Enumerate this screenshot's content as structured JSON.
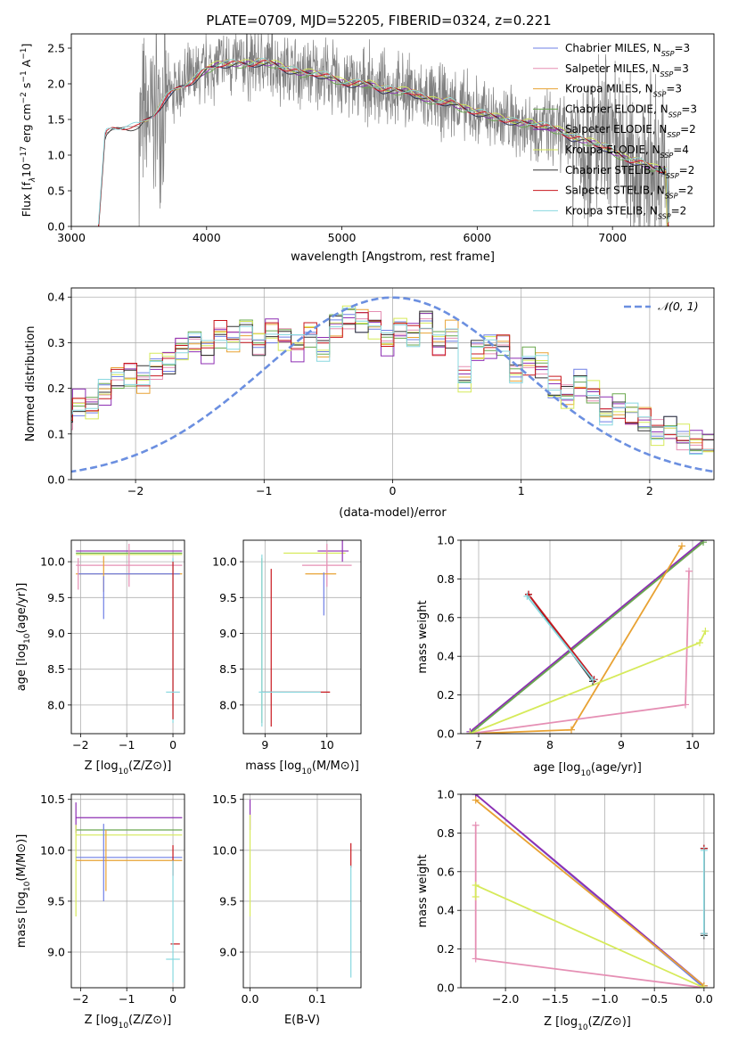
{
  "title": "PLATE=0709, MJD=52205, FIBERID=0324, z=0.221",
  "colors": {
    "Chabrier MILES": "#6f7fe6",
    "Salpeter MILES": "#e58fb4",
    "Kroupa MILES": "#e8a233",
    "Chabrier ELODIE": "#6aa84f",
    "Salpeter ELODIE": "#8e2fb3",
    "Kroupa ELODIE": "#d6ea5a",
    "Chabrier STELIB": "#333333",
    "Salpeter STELIB": "#c8171e",
    "Kroupa STELIB": "#88d8df",
    "data": "#808080",
    "gaussian": "#6b8fe0",
    "grid": "#b0b0b0"
  },
  "chart_data": [
    {
      "id": "spectrum",
      "type": "line",
      "xlabel": "wavelength [Angstrom, rest frame]",
      "ylabel_html": "Flux [f_λ 10^{-17} erg cm^{-2} s^{-1} A^{-1}]",
      "ylabel_parts": [
        "Flux [f",
        "λ",
        "10",
        "−17",
        " erg cm",
        "−2",
        " s",
        "−1",
        " A",
        "−1",
        "]"
      ],
      "xlim": [
        3000,
        7750
      ],
      "ylim": [
        0,
        2.7
      ],
      "xticks": [
        3000,
        4000,
        5000,
        6000,
        7000
      ],
      "yticks": [
        0.0,
        0.5,
        1.0,
        1.5,
        2.0,
        2.5
      ],
      "ytick_labels": [
        "0.0",
        "0.5",
        "1.0",
        "1.5",
        "2.0",
        "2.5"
      ],
      "grid": false,
      "legend_placement": "upper right",
      "legend": [
        {
          "model": "Chabrier MILES",
          "label": "Chabrier MILES, N",
          "sub": "SSP",
          "n": "=3"
        },
        {
          "model": "Salpeter MILES",
          "label": "Salpeter MILES, N",
          "sub": "SSP",
          "n": "=3"
        },
        {
          "model": "Kroupa MILES",
          "label": "Kroupa MILES, N",
          "sub": "SSP",
          "n": "=3"
        },
        {
          "model": "Chabrier ELODIE",
          "label": "Chabrier ELODIE, N",
          "sub": "SSP",
          "n": "=3"
        },
        {
          "model": "Salpeter ELODIE",
          "label": "Salpeter ELODIE, N",
          "sub": "SSP",
          "n": "=2"
        },
        {
          "model": "Kroupa ELODIE",
          "label": "Kroupa ELODIE, N",
          "sub": "SSP",
          "n": "=4"
        },
        {
          "model": "Chabrier STELIB",
          "label": "Chabrier STELIB, N",
          "sub": "SSP",
          "n": "=2"
        },
        {
          "model": "Salpeter STELIB",
          "label": "Salpeter STELIB, N",
          "sub": "SSP",
          "n": "=2"
        },
        {
          "model": "Kroupa STELIB",
          "label": "Kroupa STELIB, N",
          "sub": "SSP",
          "n": "=2"
        }
      ],
      "model_continuum": {
        "x": [
          3200,
          3250,
          3300,
          3400,
          3500,
          3600,
          3700,
          3800,
          3900,
          4000,
          4100,
          4200,
          4300,
          4400,
          4500,
          4600,
          4700,
          4800,
          4900,
          5000,
          5100,
          5200,
          5300,
          5400,
          5500,
          5600,
          5700,
          5800,
          5900,
          6000,
          6100,
          6200,
          6300,
          6400,
          6500,
          6600,
          6700,
          6800,
          6900,
          7000,
          7100,
          7200,
          7300,
          7400
        ],
        "y": [
          0.0,
          1.3,
          1.35,
          1.4,
          1.4,
          1.55,
          1.8,
          1.95,
          2.05,
          2.2,
          2.28,
          2.28,
          2.28,
          2.3,
          2.28,
          2.2,
          2.15,
          2.15,
          2.1,
          2.02,
          2.0,
          2.0,
          1.92,
          1.9,
          1.9,
          1.8,
          1.75,
          1.75,
          1.65,
          1.6,
          1.55,
          1.5,
          1.45,
          1.45,
          1.4,
          1.35,
          1.25,
          1.2,
          1.15,
          1.05,
          0.95,
          0.9,
          0.82,
          0.78
        ]
      },
      "data_noise_range_A": [
        3500,
        7400
      ]
    },
    {
      "id": "residuals",
      "type": "step",
      "xlabel": "(data-model)/error",
      "ylabel": "Normed distribution",
      "xlim": [
        -2.5,
        2.5
      ],
      "ylim": [
        0,
        0.42
      ],
      "xticks": [
        -2,
        -1,
        0,
        1,
        2
      ],
      "xtick_labels": [
        "−2",
        "−1",
        "0",
        "1",
        "2"
      ],
      "yticks": [
        0.0,
        0.1,
        0.2,
        0.3,
        0.4
      ],
      "ytick_labels": [
        "0.0",
        "0.1",
        "0.2",
        "0.3",
        "0.4"
      ],
      "grid": true,
      "legend_placement": "upper right",
      "legend_label": "𝒩(0, 1)",
      "bin_width": 0.1,
      "base_hist": [
        0.03,
        0.03,
        0.05,
        0.06,
        0.08,
        0.1,
        0.09,
        0.11,
        0.12,
        0.14,
        0.17,
        0.16,
        0.19,
        0.22,
        0.23,
        0.22,
        0.25,
        0.26,
        0.29,
        0.3,
        0.28,
        0.32,
        0.31,
        0.33,
        0.3,
        0.33,
        0.31,
        0.29,
        0.32,
        0.29,
        0.34,
        0.36,
        0.35,
        0.34,
        0.3,
        0.33,
        0.32,
        0.35,
        0.3,
        0.32,
        0.22,
        0.28,
        0.29,
        0.3,
        0.24,
        0.26,
        0.25,
        0.2,
        0.18,
        0.21,
        0.19,
        0.15,
        0.16,
        0.14,
        0.13,
        0.1,
        0.11,
        0.09,
        0.08,
        0.08,
        0.07,
        0.07,
        0.06,
        0.05,
        0.05,
        0.04,
        0.04,
        0.06,
        0.04,
        0.04
      ]
    },
    {
      "id": "age_vs_Z",
      "type": "errorbar",
      "xlabel": "Z [log10(Z/Z⊙)]",
      "ylabel": "age  [log10(age/yr)]",
      "xlim": [
        -2.2,
        0.25
      ],
      "ylim": [
        7.6,
        10.3
      ],
      "xticks": [
        -2,
        -1,
        0
      ],
      "xtick_labels": [
        "−2",
        "−1",
        "0"
      ],
      "yticks": [
        8.0,
        8.5,
        9.0,
        9.5,
        10.0
      ],
      "ytick_labels": [
        "8.0",
        "8.5",
        "9.0",
        "9.5",
        "10.0"
      ],
      "grid": true,
      "points": [
        {
          "model": "Salpeter ELODIE",
          "x": -0.95,
          "xerr": 1.15,
          "y": 10.15,
          "yerr": 0.0
        },
        {
          "model": "Kroupa ELODIE",
          "x": -0.95,
          "xerr": 1.15,
          "y": 10.1,
          "yerr": 0.0
        },
        {
          "model": "Chabrier ELODIE",
          "x": -0.95,
          "xerr": 1.15,
          "y": 10.12,
          "yerr": 0.0
        },
        {
          "model": "Salpeter MILES",
          "x": -0.95,
          "xerr": 1.15,
          "y": 9.95,
          "yerr": 0.3
        },
        {
          "model": "Kroupa MILES",
          "x": -0.95,
          "xerr": 1.15,
          "y": 9.83,
          "yerr": 0.0
        },
        {
          "model": "Chabrier MILES",
          "x": -0.95,
          "xerr": 1.1,
          "y": 9.83,
          "yerr": 0.0
        },
        {
          "model": "Kroupa MILES",
          "x": -1.5,
          "xerr": 0.0,
          "y": 9.83,
          "yerr": 0.25
        },
        {
          "model": "Chabrier MILES",
          "x": -1.5,
          "xerr": 0.0,
          "y": 9.5,
          "yerr": 0.3
        },
        {
          "model": "Kroupa ELODIE",
          "x": -2.05,
          "xerr": 0.0,
          "y": 10.12,
          "yerr": 0.0
        },
        {
          "model": "Salpeter MILES",
          "x": -2.05,
          "xerr": 0.0,
          "y": 9.83,
          "yerr": 0.22
        },
        {
          "model": "Kroupa STELIB",
          "x": 0.0,
          "xerr": 0.0,
          "y": 8.9,
          "yerr": 1.15
        },
        {
          "model": "Salpeter STELIB",
          "x": 0.0,
          "xerr": 0.0,
          "y": 8.9,
          "yerr": 1.1
        },
        {
          "model": "Kroupa STELIB",
          "x": 0.0,
          "xerr": 0.15,
          "y": 8.18,
          "yerr": 0.0
        }
      ]
    },
    {
      "id": "age_vs_mass",
      "type": "errorbar",
      "xlabel": "mass [log10(M/M⊙)]",
      "ylabel": "",
      "xlim": [
        8.65,
        10.55
      ],
      "ylim": [
        7.6,
        10.3
      ],
      "xticks": [
        9,
        10
      ],
      "xtick_labels": [
        "9",
        "10"
      ],
      "yticks": [
        8.0,
        8.5,
        9.0,
        9.5,
        10.0
      ],
      "ytick_labels": [
        "8.0",
        "8.5",
        "9.0",
        "9.5",
        "10.0"
      ],
      "grid": true,
      "points": [
        {
          "model": "Kroupa ELODIE",
          "x": 9.8,
          "xerr": 0.5,
          "y": 10.12,
          "yerr": 0.0
        },
        {
          "model": "Salpeter ELODIE",
          "x": 10.1,
          "xerr": 0.25,
          "y": 10.15,
          "yerr": 0.0
        },
        {
          "model": "Salpeter MILES",
          "x": 10.0,
          "xerr": 0.4,
          "y": 9.95,
          "yerr": 0.3
        },
        {
          "model": "Kroupa MILES",
          "x": 9.9,
          "xerr": 0.25,
          "y": 9.83,
          "yerr": 0.0
        },
        {
          "model": "Chabrier MILES",
          "x": 9.95,
          "xerr": 0.0,
          "y": 9.55,
          "yerr": 0.3
        },
        {
          "model": "Salpeter ELODIE",
          "x": 10.25,
          "xerr": 0.0,
          "y": 10.15,
          "yerr": 0.15
        },
        {
          "model": "Chabrier ELODIE",
          "x": 8.95,
          "xerr": 0.0,
          "y": 8.9,
          "yerr": 1.15
        },
        {
          "model": "Kroupa STELIB",
          "x": 8.95,
          "xerr": 0.0,
          "y": 8.9,
          "yerr": 1.2
        },
        {
          "model": "Salpeter STELIB",
          "x": 9.1,
          "xerr": 0.0,
          "y": 8.8,
          "yerr": 1.1
        },
        {
          "model": "Salpeter STELIB",
          "x": 9.5,
          "xerr": 0.55,
          "y": 8.18,
          "yerr": 0.0
        },
        {
          "model": "Kroupa STELIB",
          "x": 9.4,
          "xerr": 0.5,
          "y": 8.18,
          "yerr": 0.0
        }
      ]
    },
    {
      "id": "weight_vs_age",
      "type": "line",
      "xlabel": "age  [log10(age/yr)]",
      "ylabel": "mass weight",
      "xlim": [
        6.75,
        10.3
      ],
      "ylim": [
        0,
        1
      ],
      "xticks": [
        7,
        8,
        9,
        10
      ],
      "xtick_labels": [
        "7",
        "8",
        "9",
        "10"
      ],
      "yticks": [
        0.0,
        0.2,
        0.4,
        0.6,
        0.8,
        1.0
      ],
      "ytick_labels": [
        "0.0",
        "0.2",
        "0.4",
        "0.6",
        "0.8",
        "1.0"
      ],
      "grid": true,
      "series": [
        {
          "model": "Chabrier MILES",
          "x": [
            6.88,
            10.15
          ],
          "y": [
            0.0,
            1.0
          ]
        },
        {
          "model": "Salpeter ELODIE",
          "x": [
            6.88,
            10.15
          ],
          "y": [
            0.01,
            1.0
          ]
        },
        {
          "model": "Chabrier ELODIE",
          "x": [
            6.88,
            10.15
          ],
          "y": [
            0.0,
            0.99
          ]
        },
        {
          "model": "Kroupa MILES",
          "x": [
            6.88,
            8.3,
            9.85
          ],
          "y": [
            0.0,
            0.02,
            0.97
          ]
        },
        {
          "model": "Salpeter MILES",
          "x": [
            6.88,
            9.9,
            9.95
          ],
          "y": [
            0.0,
            0.15,
            0.84
          ]
        },
        {
          "model": "Kroupa ELODIE",
          "x": [
            6.88,
            10.1,
            10.18
          ],
          "y": [
            0.0,
            0.47,
            0.53
          ]
        },
        {
          "model": "Chabrier STELIB",
          "x": [
            7.7,
            8.6
          ],
          "y": [
            0.72,
            0.27
          ]
        },
        {
          "model": "Salpeter STELIB",
          "x": [
            7.7,
            8.62
          ],
          "y": [
            0.72,
            0.28
          ]
        },
        {
          "model": "Kroupa STELIB",
          "x": [
            7.68,
            8.6
          ],
          "y": [
            0.71,
            0.28
          ]
        }
      ]
    },
    {
      "id": "mass_vs_Z",
      "type": "errorbar",
      "xlabel": "Z [log10(Z/Z⊙)]",
      "ylabel": "mass [log10(M/M⊙)]",
      "xlim": [
        -2.2,
        0.25
      ],
      "ylim": [
        8.65,
        10.55
      ],
      "xticks": [
        -2,
        -1,
        0
      ],
      "xtick_labels": [
        "−2",
        "−1",
        "0"
      ],
      "yticks": [
        9.0,
        9.5,
        10.0,
        10.5
      ],
      "ytick_labels": [
        "9.0",
        "9.5",
        "10.0",
        "10.5"
      ],
      "grid": true,
      "points": [
        {
          "model": "Salpeter ELODIE",
          "x": -0.95,
          "xerr": 1.15,
          "y": 10.32,
          "yerr": 0.0
        },
        {
          "model": "Salpeter ELODIE",
          "x": -2.1,
          "xerr": 0.0,
          "y": 10.32,
          "yerr": 0.15
        },
        {
          "model": "Chabrier ELODIE",
          "x": -0.95,
          "xerr": 1.15,
          "y": 10.2,
          "yerr": 0.0
        },
        {
          "model": "Kroupa ELODIE",
          "x": -0.95,
          "xerr": 1.15,
          "y": 10.15,
          "yerr": 0.0
        },
        {
          "model": "Kroupa ELODIE",
          "x": -2.1,
          "xerr": 0.0,
          "y": 9.8,
          "yerr": 0.45
        },
        {
          "model": "Chabrier MILES",
          "x": -0.95,
          "xerr": 1.15,
          "y": 9.93,
          "yerr": 0.0
        },
        {
          "model": "Kroupa MILES",
          "x": -0.95,
          "xerr": 1.15,
          "y": 9.9,
          "yerr": 0.0
        },
        {
          "model": "Chabrier MILES",
          "x": -1.5,
          "xerr": 0.0,
          "y": 9.88,
          "yerr": 0.38
        },
        {
          "model": "Kroupa MILES",
          "x": -1.45,
          "xerr": 0.0,
          "y": 9.9,
          "yerr": 0.3
        },
        {
          "model": "Salpeter STELIB",
          "x": 0.0,
          "xerr": 0.0,
          "y": 9.9,
          "yerr": 0.15
        },
        {
          "model": "Salpeter STELIB",
          "x": 0.05,
          "xerr": 0.1,
          "y": 9.08,
          "yerr": 0.0
        },
        {
          "model": "Kroupa STELIB",
          "x": 0.0,
          "xerr": 0.15,
          "y": 8.93,
          "yerr": 0.0
        },
        {
          "model": "Kroupa STELIB",
          "x": 0.0,
          "xerr": 0.0,
          "y": 9.3,
          "yerr": 0.6
        }
      ]
    },
    {
      "id": "mass_vs_ebv",
      "type": "errorbar",
      "xlabel": "E(B-V)",
      "ylabel": "",
      "xlim": [
        -0.01,
        0.165
      ],
      "ylim": [
        8.65,
        10.55
      ],
      "xticks": [
        0.0,
        0.1
      ],
      "xtick_labels": [
        "0.0",
        "0.1"
      ],
      "yticks": [
        9.0,
        9.5,
        10.0,
        10.5
      ],
      "ytick_labels": [
        "9.0",
        "9.5",
        "10.0",
        "10.5"
      ],
      "grid": true,
      "points": [
        {
          "model": "Salpeter ELODIE",
          "x": 0.0,
          "xerr": 0.0,
          "y": 10.35,
          "yerr": 0.15
        },
        {
          "model": "Kroupa ELODIE",
          "x": 0.0,
          "xerr": 0.0,
          "y": 9.85,
          "yerr": 0.5
        },
        {
          "model": "Salpeter STELIB",
          "x": 0.15,
          "xerr": 0.0,
          "y": 9.95,
          "yerr": 0.12
        },
        {
          "model": "Kroupa STELIB",
          "x": 0.15,
          "xerr": 0.0,
          "y": 9.3,
          "yerr": 0.55
        }
      ]
    },
    {
      "id": "weight_vs_Z",
      "type": "line",
      "xlabel": "Z [log10(Z/Z⊙)]",
      "ylabel": "mass weight",
      "xlim": [
        -2.45,
        0.1
      ],
      "ylim": [
        0,
        1
      ],
      "xticks": [
        -2.0,
        -1.5,
        -1.0,
        -0.5,
        0.0
      ],
      "xtick_labels": [
        "−2.0",
        "−1.5",
        "−1.0",
        "−0.5",
        "0.0"
      ],
      "yticks": [
        0.0,
        0.2,
        0.4,
        0.6,
        0.8,
        1.0
      ],
      "ytick_labels": [
        "0.0",
        "0.2",
        "0.4",
        "0.6",
        "0.8",
        "1.0"
      ],
      "grid": true,
      "series": [
        {
          "model": "Chabrier MILES",
          "x": [
            -2.3,
            0.0
          ],
          "y": [
            1.0,
            0.0
          ]
        },
        {
          "model": "Salpeter ELODIE",
          "x": [
            -2.3,
            0.0
          ],
          "y": [
            1.0,
            0.01
          ]
        },
        {
          "model": "Kroupa MILES",
          "x": [
            -2.3,
            0.0
          ],
          "y": [
            0.97,
            0.01
          ]
        },
        {
          "model": "Salpeter MILES",
          "x": [
            -2.3,
            -2.3,
            0.0
          ],
          "y": [
            0.84,
            0.15,
            0.0
          ]
        },
        {
          "model": "Kroupa ELODIE",
          "x": [
            -2.3,
            -2.3,
            0.0
          ],
          "y": [
            0.47,
            0.53,
            0.0
          ]
        },
        {
          "model": "Chabrier STELIB",
          "x": [
            0.0,
            0.0
          ],
          "y": [
            0.72,
            0.27
          ]
        },
        {
          "model": "Salpeter STELIB",
          "x": [
            0.0,
            0.0
          ],
          "y": [
            0.72,
            0.28
          ]
        },
        {
          "model": "Kroupa STELIB",
          "x": [
            0.0,
            0.0
          ],
          "y": [
            0.71,
            0.28
          ]
        }
      ]
    }
  ]
}
